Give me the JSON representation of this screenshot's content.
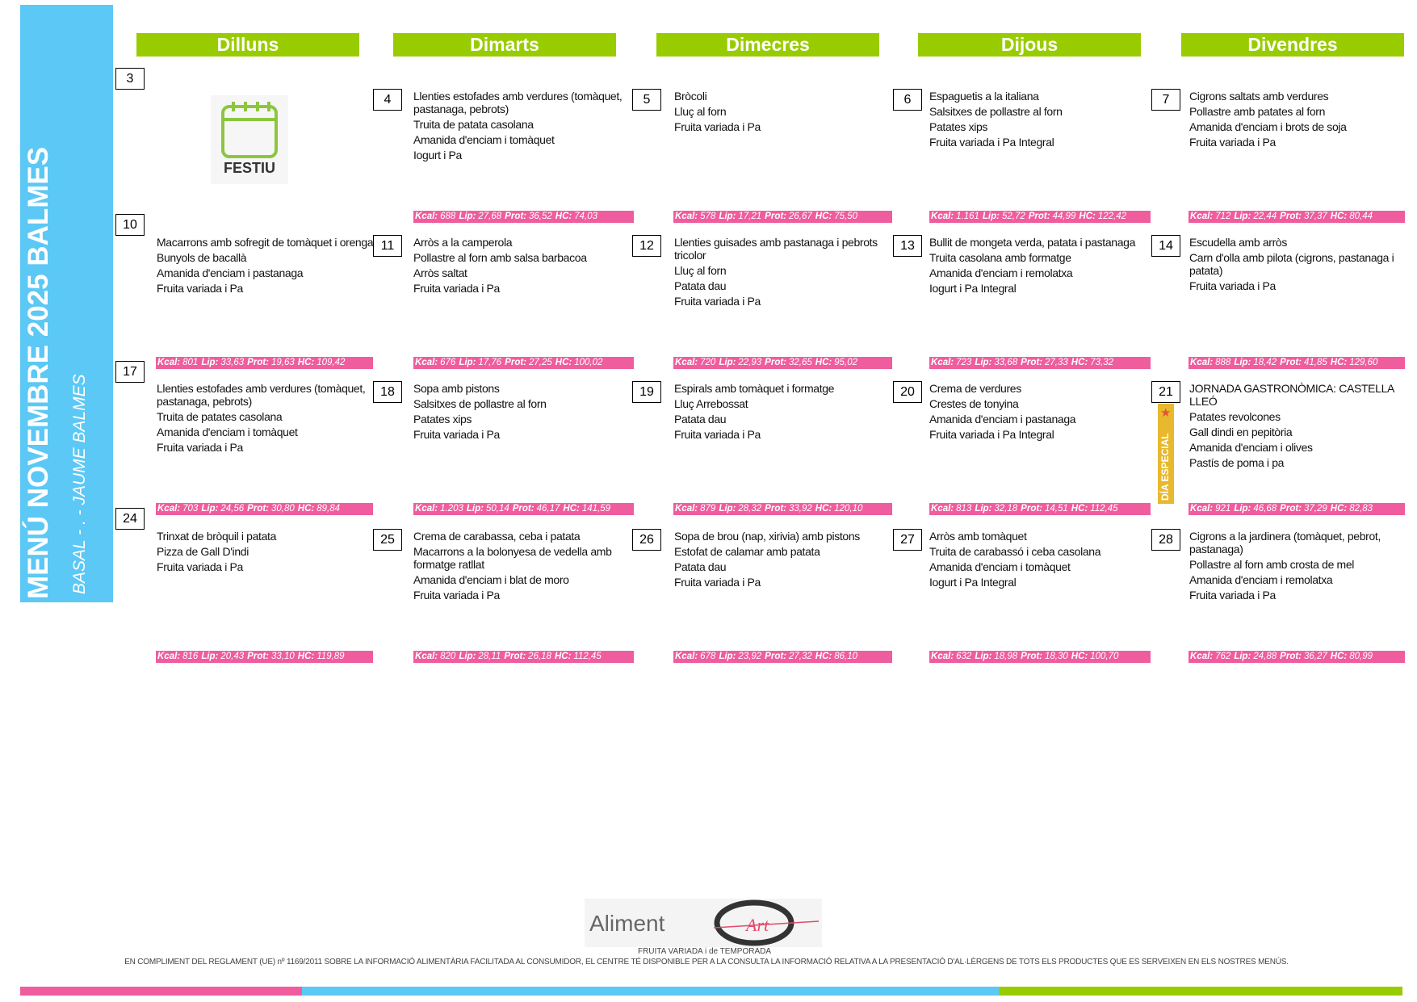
{
  "sidebar": {
    "title": "MENÚ NOVEMBRE 2025 BALMES",
    "subtitle": "BASAL - . - JAUME BALMES"
  },
  "weekdays": [
    "Dilluns",
    "Dimarts",
    "Dimecres",
    "Dijous",
    "Divendres"
  ],
  "nutrition_labels": [
    "Kcal:",
    "Lip:",
    "Prot:",
    "HC:"
  ],
  "weeks": [
    {
      "days": [
        {
          "day": "3",
          "holiday": "FESTIU"
        },
        {
          "day": "4",
          "dishes": [
            "Llenties estofades amb verdures (tomàquet, pastanaga, pebrots)",
            "Truita de patata casolana",
            "Amanida d'enciam i tomàquet",
            "Iogurt i Pa"
          ],
          "nutrition": [
            "688",
            "27,68",
            "36,52",
            "74,03"
          ]
        },
        {
          "day": "5",
          "dishes": [
            "Bròcoli",
            "Lluç al forn",
            "Fruita variada i Pa"
          ],
          "nutrition": [
            "578",
            "17,21",
            "26,67",
            "75,50"
          ]
        },
        {
          "day": "6",
          "dishes": [
            "Espaguetis a la italiana",
            "Salsitxes de pollastre al forn",
            "Patates xips",
            "Fruita variada i Pa Integral"
          ],
          "nutrition": [
            "1.161",
            "52,72",
            "44,99",
            "122,42"
          ]
        },
        {
          "day": "7",
          "dishes": [
            "Cigrons saltats amb verdures",
            "Pollastre amb patates al forn",
            "Amanida d'enciam i brots de soja",
            "Fruita variada i Pa"
          ],
          "nutrition": [
            "712",
            "22,44",
            "37,37",
            "80,44"
          ]
        }
      ]
    },
    {
      "days": [
        {
          "day": "10",
          "dishes": [
            "Macarrons amb sofregit de tomàquet i orenga",
            "Bunyols de bacallà",
            "Amanida d'enciam i pastanaga",
            "Fruita variada i Pa"
          ],
          "nutrition": [
            "801",
            "33,63",
            "19,63",
            "109,42"
          ]
        },
        {
          "day": "11",
          "dishes": [
            "Arròs a la camperola",
            "Pollastre al forn amb salsa barbacoa",
            "Arròs saltat",
            "Fruita variada i Pa"
          ],
          "nutrition": [
            "676",
            "17,76",
            "27,25",
            "100,02"
          ]
        },
        {
          "day": "12",
          "dishes": [
            "Llenties guisades amb pastanaga i pebrots tricolor",
            "Lluç al forn",
            "Patata dau",
            "Fruita variada i Pa"
          ],
          "nutrition": [
            "720",
            "22,93",
            "32,65",
            "95,02"
          ]
        },
        {
          "day": "13",
          "dishes": [
            "Bullit de mongeta verda, patata i pastanaga",
            "Truita casolana amb formatge",
            "Amanida d'enciam i remolatxa",
            "Iogurt i Pa Integral"
          ],
          "nutrition": [
            "723",
            "33,68",
            "27,33",
            "73,32"
          ]
        },
        {
          "day": "14",
          "dishes": [
            "Escudella amb arròs",
            "Carn d'olla amb pilota (cigrons, pastanaga i patata)",
            "Fruita variada i Pa"
          ],
          "nutrition": [
            "888",
            "18,42",
            "41,85",
            "129,60"
          ]
        }
      ]
    },
    {
      "days": [
        {
          "day": "17",
          "dishes": [
            "Llenties estofades amb verdures (tomàquet, pastanaga, pebrots)",
            "Truita de patates casolana",
            "Amanida d'enciam i tomàquet",
            "Fruita variada i Pa"
          ],
          "nutrition": [
            "703",
            "24,56",
            "30,80",
            "89,84"
          ]
        },
        {
          "day": "18",
          "dishes": [
            "Sopa amb pistons",
            "Salsitxes de pollastre al forn",
            "Patates xips",
            "Fruita variada i Pa"
          ],
          "nutrition": [
            "1.203",
            "50,14",
            "46,17",
            "141,59"
          ]
        },
        {
          "day": "19",
          "dishes": [
            "Espirals amb tomàquet i formatge",
            "Lluç Arrebossat",
            "Patata dau",
            "Fruita variada i Pa"
          ],
          "nutrition": [
            "879",
            "28,32",
            "33,92",
            "120,10"
          ]
        },
        {
          "day": "20",
          "dishes": [
            "Crema de verdures",
            "Crestes de tonyina",
            "Amanida d'enciam i pastanaga",
            "Fruita variada i Pa Integral"
          ],
          "nutrition": [
            "813",
            "32,18",
            "14,51",
            "112,45"
          ]
        },
        {
          "day": "21",
          "badge": "DÍA ESPECIAL",
          "dishes": [
            "JORNADA GASTRONÒMICA: CASTELLA LLEÓ",
            "Patates revolcones",
            "Gall dindi en pepitòria",
            "Amanida d'enciam i olives",
            "Pastís de poma i pa"
          ],
          "nutrition": [
            "921",
            "46,68",
            "37,29",
            "82,83"
          ]
        }
      ]
    },
    {
      "days": [
        {
          "day": "24",
          "dishes": [
            "Trinxat de bròquil i patata",
            "Pizza de Gall D'indi",
            "Fruita variada i Pa"
          ],
          "nutrition": [
            "816",
            "20,43",
            "33,10",
            "119,89"
          ]
        },
        {
          "day": "25",
          "dishes": [
            "Crema de carabassa, ceba i patata",
            "Macarrons a la bolonyesa de vedella amb formatge ratllat",
            "Amanida d'enciam i blat de moro",
            "Fruita variada i Pa"
          ],
          "nutrition": [
            "820",
            "28,11",
            "26,18",
            "112,45"
          ]
        },
        {
          "day": "26",
          "dishes": [
            "Sopa de brou (nap, xirivia) amb pistons",
            "Estofat de calamar amb patata",
            "Patata dau",
            "Fruita variada i Pa"
          ],
          "nutrition": [
            "678",
            "23,92",
            "27,32",
            "86,10"
          ]
        },
        {
          "day": "27",
          "dishes": [
            "Arròs amb tomàquet",
            "Truita de carabassó i ceba casolana",
            "Amanida d'enciam i tomàquet",
            "Iogurt i Pa Integral"
          ],
          "nutrition": [
            "632",
            "18,98",
            "18,30",
            "100,70"
          ]
        },
        {
          "day": "28",
          "dishes": [
            "Cigrons a la jardinera (tomàquet, pebrot, pastanaga)",
            "Pollastre al forn amb crosta de mel",
            "Amanida d'enciam i remolatxa",
            "Fruita variada i Pa"
          ],
          "nutrition": [
            "762",
            "24,88",
            "36,27",
            "80,99"
          ]
        }
      ]
    }
  ],
  "footer": {
    "logo": [
      "Aliment",
      "Art"
    ],
    "note": "FRUITA VARIADA i de TEMPORADA",
    "legal": "EN COMPLIMENT DEL REGLAMENT (UE) nº 1169/2011 SOBRE LA INFORMACIÓ ALIMENTÀRIA FACILITADA AL CONSUMIDOR, EL CENTRE TÉ DISPONIBLE PER A LA CONSULTA LA INFORMACIÓ RELATIVA A LA PRESENTACIÓ D'AL·LÈRGENS DE TOTS ELS PRODUCTES QUE ES SERVEIXEN EN ELS NOSTRES MENÚS."
  }
}
